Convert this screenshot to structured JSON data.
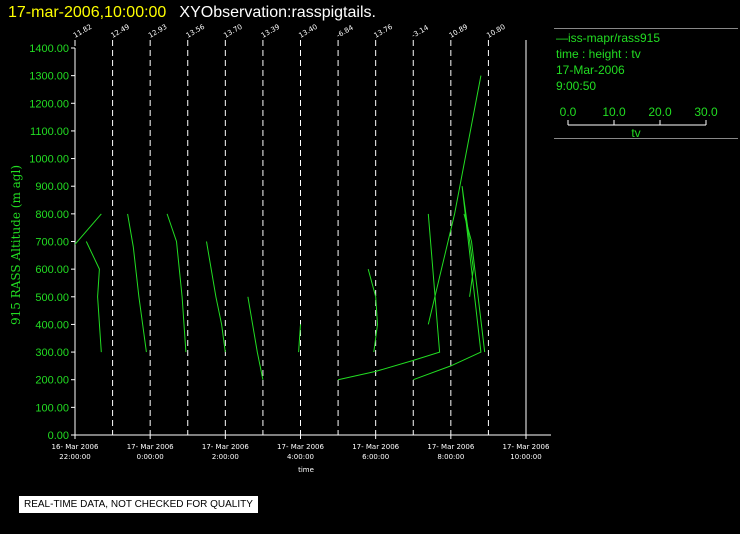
{
  "header": {
    "timestamp": "17-mar-2006,10:00:00",
    "title": "XYObservation:rasspigtails."
  },
  "legend": {
    "series_label": "iss-mapr/rass915",
    "variables": "time : height : tv",
    "date": "17-Mar-2006",
    "time": "9:00:50",
    "scale_ticks": [
      "0.0",
      "10.0",
      "20.0",
      "30.0"
    ],
    "scale_label": "tv"
  },
  "notice": "REAL-TIME DATA, NOT CHECKED FOR QUALITY",
  "colors": {
    "line": "#22dd22",
    "axis": "#ffffff",
    "title_date": "#ffff00"
  },
  "chart_data": {
    "type": "line",
    "ylabel": "915 RASS Altitude (m agl)",
    "xlabel": "time",
    "ylim": [
      0,
      1400
    ],
    "y_ticks": [
      "0.00",
      "100.00",
      "200.00",
      "300.00",
      "400.00",
      "500.00",
      "600.00",
      "700.00",
      "800.00",
      "900.00",
      "1000.00",
      "1100.00",
      "1200.00",
      "1300.00",
      "1400.00"
    ],
    "x_ticks": [
      {
        "date": "16- Mar 2006",
        "time": "22:00:00"
      },
      {
        "date": "17- Mar 2006",
        "time": "0:00:00"
      },
      {
        "date": "17- Mar 2006",
        "time": "2:00:00"
      },
      {
        "date": "17- Mar 2006",
        "time": "4:00:00"
      },
      {
        "date": "17- Mar 2006",
        "time": "6:00:00"
      },
      {
        "date": "17- Mar 2006",
        "time": "8:00:00"
      },
      {
        "date": "17- Mar 2006",
        "time": "10:00:00"
      }
    ],
    "xlim_hours": [
      -2,
      10
    ],
    "profiles": [
      {
        "label": "11.82",
        "x": -2.0
      },
      {
        "label": "12.49",
        "x": -1.0
      },
      {
        "label": "12.93",
        "x": 0.0
      },
      {
        "label": "13.56",
        "x": 1.0
      },
      {
        "label": "13.70",
        "x": 2.0
      },
      {
        "label": "13.39",
        "x": 3.0
      },
      {
        "label": "13.40",
        "x": 4.0
      },
      {
        "label": "-6.84",
        "x": 5.0
      },
      {
        "label": "13.76",
        "x": 6.0
      },
      {
        "label": "-3.14",
        "x": 7.0
      },
      {
        "label": "10.89",
        "x": 8.0
      },
      {
        "label": "10.80",
        "x": 9.0
      }
    ],
    "series": [
      {
        "points": [
          [
            -2.0,
            690
          ],
          [
            -1.3,
            800
          ]
        ]
      },
      {
        "points": [
          [
            -1.7,
            700
          ],
          [
            -1.35,
            600
          ],
          [
            -1.4,
            500
          ],
          [
            -1.3,
            300
          ]
        ]
      },
      {
        "points": [
          [
            -0.6,
            800
          ],
          [
            -0.45,
            680
          ],
          [
            -0.3,
            500
          ],
          [
            -0.1,
            300
          ]
        ]
      },
      {
        "points": [
          [
            0.45,
            800
          ],
          [
            0.7,
            700
          ],
          [
            0.85,
            500
          ],
          [
            0.95,
            300
          ]
        ]
      },
      {
        "points": [
          [
            1.5,
            700
          ],
          [
            1.75,
            500
          ],
          [
            1.9,
            400
          ],
          [
            2.0,
            300
          ]
        ]
      },
      {
        "points": [
          [
            2.6,
            500
          ],
          [
            2.85,
            300
          ],
          [
            3.0,
            200
          ]
        ]
      },
      {
        "points": [
          [
            4.0,
            400
          ],
          [
            3.95,
            300
          ]
        ]
      },
      {
        "points": [
          [
            5.0,
            200
          ],
          [
            6.0,
            230
          ],
          [
            7.0,
            270
          ],
          [
            7.7,
            300
          ],
          [
            7.4,
            800
          ]
        ]
      },
      {
        "points": [
          [
            5.8,
            600
          ],
          [
            6.0,
            500
          ],
          [
            6.05,
            400
          ],
          [
            5.95,
            300
          ]
        ]
      },
      {
        "points": [
          [
            7.0,
            200
          ],
          [
            8.0,
            250
          ],
          [
            8.8,
            300
          ],
          [
            8.3,
            900
          ],
          [
            8.6,
            600
          ],
          [
            8.5,
            500
          ]
        ]
      },
      {
        "points": [
          [
            7.4,
            400
          ],
          [
            8.1,
            800
          ],
          [
            8.8,
            1300
          ]
        ]
      },
      {
        "points": [
          [
            8.35,
            800
          ],
          [
            8.55,
            700
          ],
          [
            8.9,
            300
          ]
        ]
      }
    ]
  }
}
